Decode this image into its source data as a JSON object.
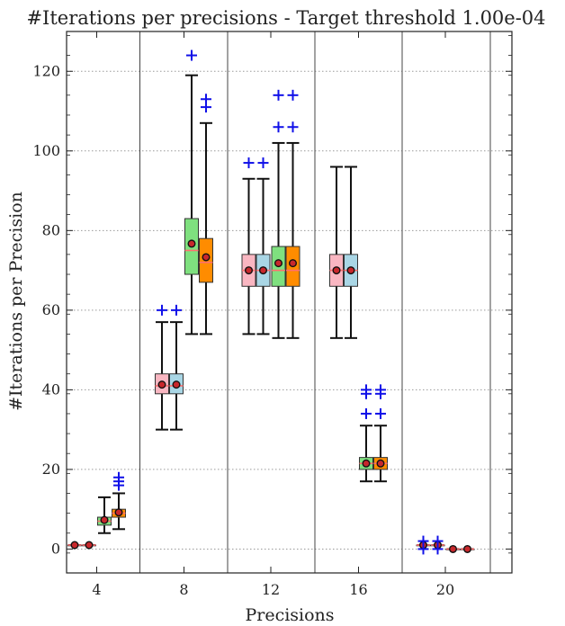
{
  "chart_data": {
    "type": "box",
    "title": "#Iterations per precisions - Target threshold 1.00e-04",
    "xlabel": "Precisions",
    "ylabel": "#Iterations per Precision",
    "ylim": [
      -6,
      130
    ],
    "yticks": [
      0,
      20,
      40,
      60,
      80,
      100,
      120
    ],
    "grid": "horizontal dotted",
    "group_separators_between": [
      4,
      8,
      12,
      16,
      20
    ],
    "series_colors": [
      "#f9b6c1",
      "#a9d6e5",
      "#7fe07f",
      "#ff8c00"
    ],
    "groups": [
      {
        "label": "4",
        "boxes": [
          {
            "series": 0,
            "whislo": 1,
            "q1": 1,
            "med": 1,
            "q3": 1,
            "whishi": 1,
            "mean": 1,
            "fliers": []
          },
          {
            "series": 1,
            "whislo": 1,
            "q1": 1,
            "med": 1,
            "q3": 1,
            "whishi": 1,
            "mean": 1,
            "fliers": []
          },
          {
            "series": 2,
            "whislo": 4,
            "q1": 6,
            "med": 7,
            "q3": 8,
            "whishi": 13,
            "mean": 7.3,
            "fliers": []
          },
          {
            "series": 3,
            "whislo": 5,
            "q1": 8,
            "med": 9,
            "q3": 10,
            "whishi": 14,
            "mean": 9.2,
            "fliers": [
              16,
              17,
              18
            ]
          }
        ]
      },
      {
        "label": "8",
        "boxes": [
          {
            "series": 0,
            "whislo": 30,
            "q1": 39,
            "med": 41,
            "q3": 44,
            "whishi": 57,
            "mean": 41.3,
            "fliers": [
              60
            ]
          },
          {
            "series": 1,
            "whislo": 30,
            "q1": 39,
            "med": 41,
            "q3": 44,
            "whishi": 57,
            "mean": 41.3,
            "fliers": [
              60
            ]
          },
          {
            "series": 2,
            "whislo": 54,
            "q1": 69,
            "med": 75,
            "q3": 83,
            "whishi": 119,
            "mean": 76.7,
            "fliers": [
              124
            ]
          },
          {
            "series": 3,
            "whislo": 54,
            "q1": 67,
            "med": 72,
            "q3": 78,
            "whishi": 107,
            "mean": 73.3,
            "fliers": [
              111,
              113
            ]
          }
        ]
      },
      {
        "label": "12",
        "boxes": [
          {
            "series": 0,
            "whislo": 54,
            "q1": 66,
            "med": 70,
            "q3": 74,
            "whishi": 93,
            "mean": 70,
            "fliers": [
              97
            ]
          },
          {
            "series": 1,
            "whislo": 54,
            "q1": 66,
            "med": 70,
            "q3": 74,
            "whishi": 93,
            "mean": 70,
            "fliers": [
              97
            ]
          },
          {
            "series": 2,
            "whislo": 53,
            "q1": 66,
            "med": 70,
            "q3": 76,
            "whishi": 102,
            "mean": 71.8,
            "fliers": [
              106,
              114
            ]
          },
          {
            "series": 3,
            "whislo": 53,
            "q1": 66,
            "med": 70,
            "q3": 76,
            "whishi": 102,
            "mean": 71.8,
            "fliers": [
              106,
              114
            ]
          }
        ]
      },
      {
        "label": "16",
        "boxes": [
          {
            "series": 0,
            "whislo": 53,
            "q1": 66,
            "med": 70,
            "q3": 74,
            "whishi": 96,
            "mean": 70,
            "fliers": []
          },
          {
            "series": 1,
            "whislo": 53,
            "q1": 66,
            "med": 70,
            "q3": 74,
            "whishi": 96,
            "mean": 70,
            "fliers": []
          },
          {
            "series": 2,
            "whislo": 17,
            "q1": 20,
            "med": 21.5,
            "q3": 23,
            "whishi": 31,
            "mean": 21.5,
            "fliers": [
              34,
              39,
              40
            ]
          },
          {
            "series": 3,
            "whislo": 17,
            "q1": 20,
            "med": 21.5,
            "q3": 23,
            "whishi": 31,
            "mean": 21.5,
            "fliers": [
              34,
              39,
              40
            ]
          }
        ]
      },
      {
        "label": "20",
        "boxes": [
          {
            "series": 0,
            "whislo": 1,
            "q1": 1,
            "med": 1,
            "q3": 1,
            "whishi": 1,
            "mean": 1,
            "fliers": [
              0,
              2
            ]
          },
          {
            "series": 1,
            "whislo": 1,
            "q1": 1,
            "med": 1,
            "q3": 1,
            "whishi": 1,
            "mean": 1,
            "fliers": [
              0,
              2
            ]
          },
          {
            "series": 2,
            "whislo": 0,
            "q1": 0,
            "med": 0,
            "q3": 0,
            "whishi": 0,
            "mean": 0,
            "fliers": []
          },
          {
            "series": 3,
            "whislo": 0,
            "q1": 0,
            "med": 0,
            "q3": 0,
            "whishi": 0,
            "mean": 0,
            "fliers": []
          }
        ]
      }
    ]
  }
}
